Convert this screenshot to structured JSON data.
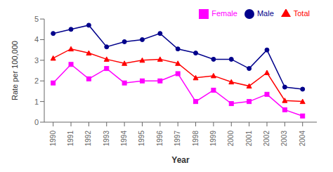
{
  "chart_data": {
    "type": "line",
    "xlabel": "Year",
    "ylabel": "Rate per 100,000",
    "x": [
      1990,
      1991,
      1992,
      1993,
      1994,
      1995,
      1996,
      1997,
      1998,
      1999,
      2000,
      2001,
      2002,
      2003,
      2004
    ],
    "series": [
      {
        "name": "Male",
        "color": "#00008B",
        "marker": "circle",
        "values": [
          4.3,
          4.5,
          4.7,
          3.65,
          3.9,
          4.0,
          4.3,
          3.55,
          3.35,
          3.05,
          3.05,
          2.6,
          3.5,
          1.7,
          1.6
        ]
      },
      {
        "name": "Female",
        "color": "#FF00FF",
        "marker": "square",
        "values": [
          1.9,
          2.8,
          2.1,
          2.6,
          1.9,
          2.0,
          2.0,
          2.35,
          1.0,
          1.55,
          0.9,
          1.0,
          1.35,
          0.6,
          0.3
        ]
      },
      {
        "name": "Total",
        "color": "#FF0000",
        "marker": "triangle",
        "values": [
          3.1,
          3.55,
          3.35,
          3.05,
          2.85,
          3.0,
          3.05,
          2.85,
          2.15,
          2.25,
          1.95,
          1.75,
          2.4,
          1.05,
          1.0
        ]
      }
    ],
    "xlim": [
      1989.5,
      2004.8
    ],
    "xticks": [
      1990,
      1991,
      1992,
      1993,
      1994,
      1995,
      1996,
      1997,
      1998,
      1999,
      2000,
      2001,
      2002,
      2003,
      2004
    ],
    "ylim": [
      0,
      5
    ],
    "yticks": [
      0,
      1,
      2,
      3,
      4,
      5
    ],
    "grid": false,
    "legend": "upper right"
  }
}
